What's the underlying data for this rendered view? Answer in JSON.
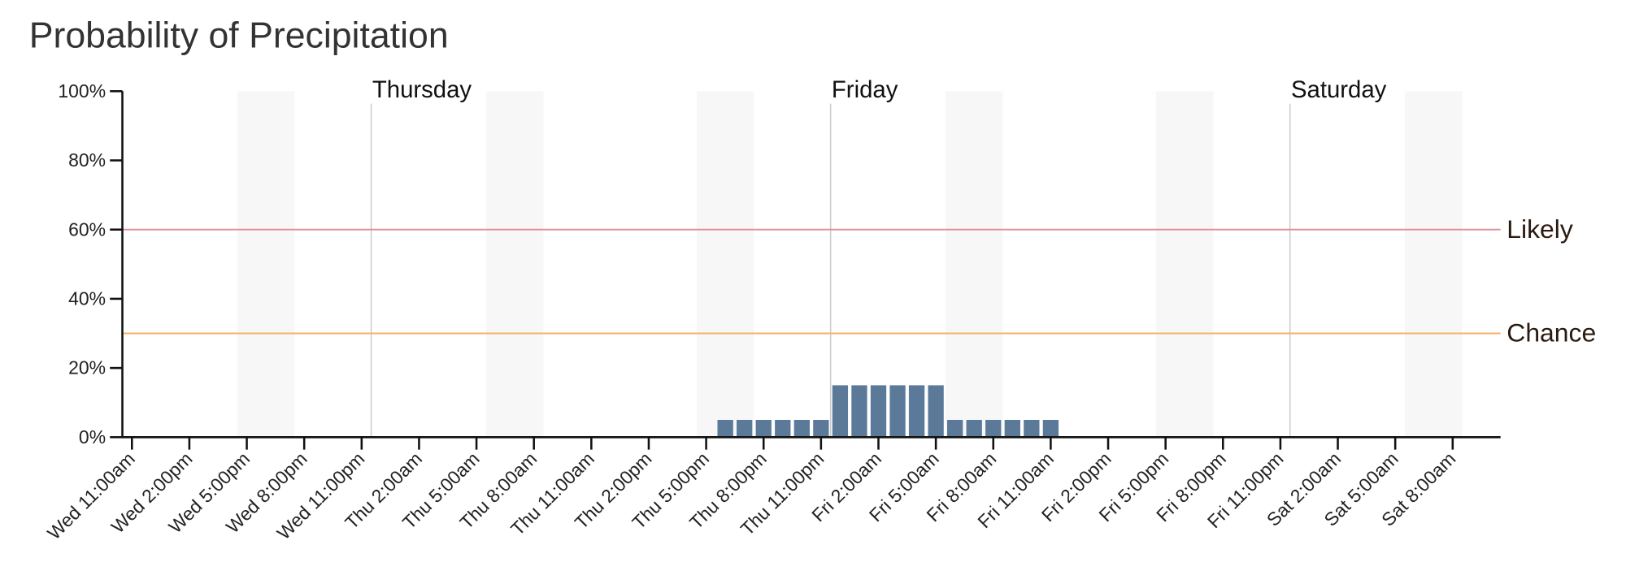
{
  "chart_data": {
    "type": "bar",
    "title": "Probability of Precipitation",
    "categories": [
      "Wed 11:00am",
      null,
      null,
      "Wed 2:00pm",
      null,
      null,
      "Wed 5:00pm",
      null,
      null,
      "Wed 8:00pm",
      null,
      null,
      "Wed 11:00pm",
      null,
      null,
      "Thu 2:00am",
      null,
      null,
      "Thu 5:00am",
      null,
      null,
      "Thu 8:00am",
      null,
      null,
      "Thu 11:00am",
      null,
      null,
      "Thu 2:00pm",
      null,
      null,
      "Thu 5:00pm",
      null,
      null,
      "Thu 8:00pm",
      null,
      null,
      "Thu 11:00pm",
      null,
      null,
      "Fri 2:00am",
      null,
      null,
      "Fri 5:00am",
      null,
      null,
      "Fri 8:00am",
      null,
      null,
      "Fri 11:00am",
      null,
      null,
      "Fri 2:00pm",
      null,
      null,
      "Fri 5:00pm",
      null,
      null,
      "Fri 8:00pm",
      null,
      null,
      "Fri 11:00pm",
      null,
      null,
      "Sat 2:00am",
      null,
      null,
      "Sat 5:00am",
      null,
      null,
      "Sat 8:00am",
      null,
      null
    ],
    "values": [
      0,
      0,
      0,
      0,
      0,
      0,
      0,
      0,
      0,
      0,
      0,
      0,
      0,
      0,
      0,
      0,
      0,
      0,
      0,
      0,
      0,
      0,
      0,
      0,
      0,
      0,
      0,
      0,
      0,
      0,
      0,
      5,
      5,
      5,
      5,
      5,
      5,
      15,
      15,
      15,
      15,
      15,
      15,
      5,
      5,
      5,
      5,
      5,
      5,
      0,
      0,
      0,
      0,
      0,
      0,
      0,
      0,
      0,
      0,
      0,
      0,
      0,
      0,
      0,
      0,
      0,
      0,
      0,
      0,
      0,
      0,
      0
    ],
    "color": "#5b7a99",
    "ylim": [
      0,
      100
    ],
    "yticks": [
      {
        "value": 0,
        "label": "0%"
      },
      {
        "value": 20,
        "label": "20%"
      },
      {
        "value": 40,
        "label": "40%"
      },
      {
        "value": 60,
        "label": "60%"
      },
      {
        "value": 80,
        "label": "80%"
      },
      {
        "value": 100,
        "label": "100%"
      }
    ],
    "day_labels": [
      "Thursday",
      "Friday",
      "Saturday"
    ],
    "thresholds": [
      {
        "label": "Likely",
        "value": 60,
        "color": "#de8f99"
      },
      {
        "label": "Chance",
        "value": 30,
        "color": "#f2b36b"
      }
    ]
  }
}
